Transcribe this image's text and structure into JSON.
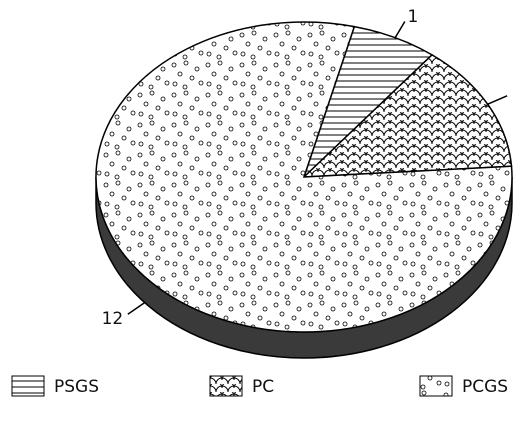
{
  "chart_data": {
    "type": "pie",
    "style": "3d-tilted",
    "labels": [
      "PSGS",
      "PC",
      "PCGS"
    ],
    "values": [
      1,
      2,
      12
    ],
    "slice_labels": [
      "1",
      "",
      "12"
    ],
    "legend": [
      {
        "label": "PSGS",
        "pattern": "horizontal-lines"
      },
      {
        "label": "PC",
        "pattern": "scales"
      },
      {
        "label": "PCGS",
        "pattern": "dots"
      }
    ],
    "legend_position": "bottom",
    "colors": {
      "outline": "#000000",
      "pie_side": "#3a3a3a",
      "background": "#ffffff"
    }
  }
}
